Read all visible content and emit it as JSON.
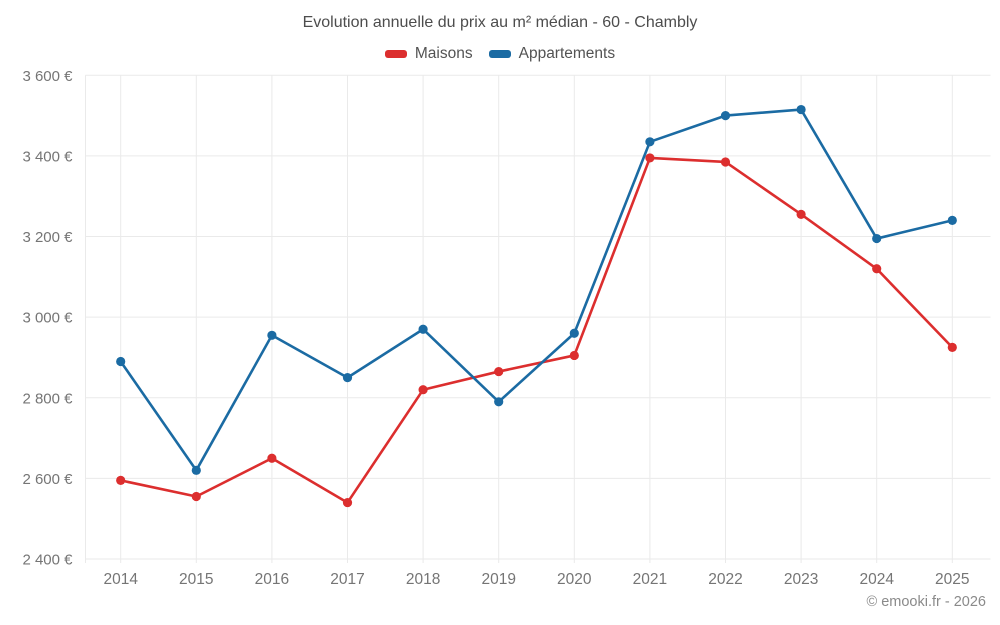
{
  "title": "Evolution annuelle du prix au m² médian - 60 - Chambly",
  "footer_credit": "© emooki.fr - 2026",
  "legend": [
    {
      "label": "Maisons",
      "color": "#dc2e2e"
    },
    {
      "label": "Appartements",
      "color": "#1b6ba3"
    }
  ],
  "chart_data": {
    "type": "line",
    "title": "Evolution annuelle du prix au m² médian - 60 - Chambly",
    "categories": [
      "2014",
      "2015",
      "2016",
      "2017",
      "2018",
      "2019",
      "2020",
      "2021",
      "2022",
      "2023",
      "2024",
      "2025"
    ],
    "series": [
      {
        "name": "Maisons",
        "color": "#dc2e2e",
        "values": [
          2595,
          2555,
          2650,
          2540,
          2820,
          2865,
          2905,
          3395,
          3385,
          3255,
          3120,
          2925
        ]
      },
      {
        "name": "Appartements",
        "color": "#1b6ba3",
        "values": [
          2890,
          2620,
          2955,
          2850,
          2970,
          2790,
          2960,
          3435,
          3500,
          3515,
          3195,
          3240
        ]
      }
    ],
    "ylim": [
      2400,
      3600
    ],
    "y_ticks": [
      {
        "value": 2400,
        "label": "2 400 €"
      },
      {
        "value": 2600,
        "label": "2 600 €"
      },
      {
        "value": 2800,
        "label": "2 800 €"
      },
      {
        "value": 3000,
        "label": "3 000 €"
      },
      {
        "value": 3200,
        "label": "3 200 €"
      },
      {
        "value": 3400,
        "label": "3 400 €"
      },
      {
        "value": 3600,
        "label": "3 600 €"
      }
    ],
    "xlabel": "",
    "ylabel": "",
    "grid": true,
    "legend_position": "top",
    "grid_color": "#eaeaea",
    "tick_label_color": "#757575"
  }
}
